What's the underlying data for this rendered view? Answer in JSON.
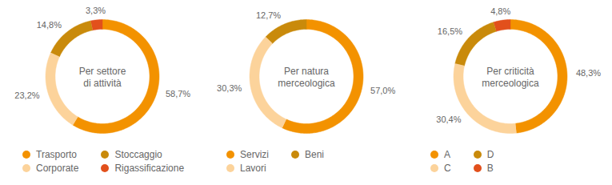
{
  "chart_data": [
    {
      "type": "donut",
      "title": "Per settore\ndi attività",
      "categories": [
        "Trasporto",
        "Corporate",
        "Stoccaggio",
        "Rigassificazione"
      ],
      "values": [
        58.7,
        23.2,
        14.8,
        3.3
      ],
      "value_labels": [
        "58,7%",
        "23,2%",
        "14,8%",
        "3,3%"
      ],
      "colors": [
        "#f39200",
        "#fcd39b",
        "#c98a0b",
        "#e2501c"
      ],
      "data_labels": true,
      "legend": "bottom"
    },
    {
      "type": "donut",
      "title": "Per natura\nmerceologica",
      "categories": [
        "Servizi",
        "Lavori",
        "Beni"
      ],
      "values": [
        57.0,
        30.3,
        12.7
      ],
      "value_labels": [
        "57,0%",
        "30,3%",
        "12,7%"
      ],
      "colors": [
        "#f39200",
        "#fcd39b",
        "#c98a0b"
      ],
      "data_labels": true,
      "legend": "bottom"
    },
    {
      "type": "donut",
      "title": "Per criticità\nmerceologica",
      "categories": [
        "A",
        "C",
        "D",
        "B"
      ],
      "values": [
        48.3,
        30.4,
        16.5,
        4.8
      ],
      "value_labels": [
        "48,3%",
        "30,4%",
        "16,5%",
        "4,8%"
      ],
      "colors": [
        "#f39200",
        "#fcd39b",
        "#c98a0b",
        "#e2501c"
      ],
      "data_labels": true,
      "legend": "bottom"
    }
  ]
}
